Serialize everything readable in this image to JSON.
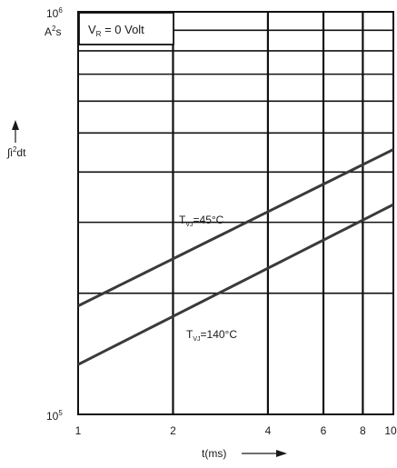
{
  "chart_data": {
    "type": "line",
    "title": "",
    "condition_label": {
      "main": "V",
      "sub": "R",
      "rest": " = 0 Volt"
    },
    "y_axis": {
      "scale": "log",
      "range": [
        100000,
        1000000
      ],
      "top_tick_label": {
        "base": "10",
        "exp": "6"
      },
      "bottom_tick_label": {
        "base": "10",
        "exp": "5"
      },
      "unit_label": {
        "a": "A",
        "sup": "2",
        "b": "s"
      },
      "quantity_label": {
        "a": "∫i",
        "sup": "2",
        "b": "dt"
      }
    },
    "x_axis": {
      "scale": "log",
      "range": [
        1,
        10
      ],
      "ticks": [
        1,
        2,
        4,
        6,
        8,
        10
      ],
      "tick_labels": [
        "1",
        "2",
        "4",
        "6",
        "8",
        "10"
      ],
      "label": "t(ms)"
    },
    "grid": true,
    "series": [
      {
        "label": {
          "main": "T",
          "sub": "VJ",
          "rest": "=45°C"
        },
        "x": [
          1,
          10
        ],
        "y": [
          186000,
          455000
        ]
      },
      {
        "label": {
          "main": "T",
          "sub": "VJ",
          "rest": "=140°C"
        },
        "x": [
          1,
          10
        ],
        "y": [
          133000,
          332000
        ]
      }
    ],
    "colors": {
      "line": "#3a3a3a",
      "grid": "#111111",
      "text": "#1a1a1a"
    }
  }
}
